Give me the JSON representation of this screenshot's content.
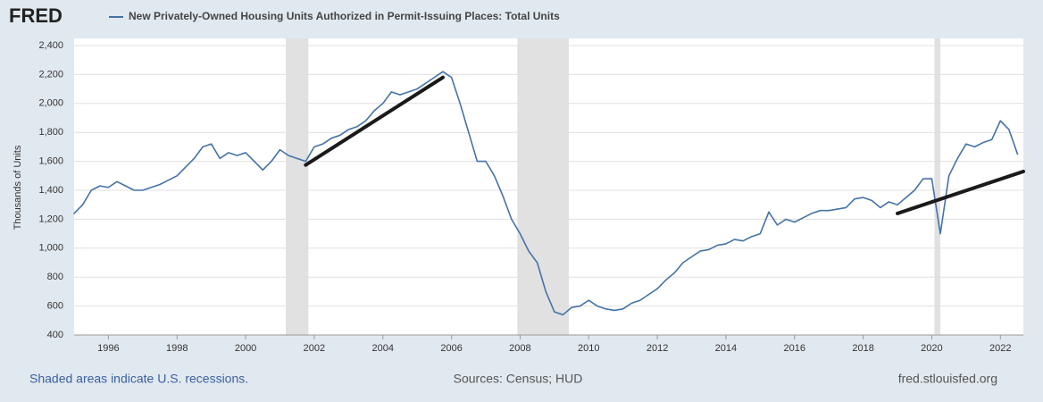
{
  "chart_data": {
    "type": "line",
    "logo": "FRED",
    "title": "New Privately-Owned Housing Units Authorized in Permit-Issuing Places: Total Units",
    "y_label": "Thousands of Units",
    "footer_left": "Shaded areas indicate U.S. recessions.",
    "footer_center": "Sources: Census; HUD",
    "footer_right": "fred.stlouisfed.org",
    "x": [
      1995,
      1995.25,
      1995.5,
      1995.75,
      1996,
      1996.25,
      1996.5,
      1996.75,
      1997,
      1997.25,
      1997.5,
      1997.75,
      1998,
      1998.25,
      1998.5,
      1998.75,
      1999,
      1999.25,
      1999.5,
      1999.75,
      2000,
      2000.25,
      2000.5,
      2000.75,
      2001,
      2001.25,
      2001.5,
      2001.75,
      2002,
      2002.25,
      2002.5,
      2002.75,
      2003,
      2003.25,
      2003.5,
      2003.75,
      2004,
      2004.25,
      2004.5,
      2004.75,
      2005,
      2005.25,
      2005.5,
      2005.75,
      2006,
      2006.25,
      2006.5,
      2006.75,
      2007,
      2007.25,
      2007.5,
      2007.75,
      2008,
      2008.25,
      2008.5,
      2008.75,
      2009,
      2009.25,
      2009.5,
      2009.75,
      2010,
      2010.25,
      2010.5,
      2010.75,
      2011,
      2011.25,
      2011.5,
      2011.75,
      2012,
      2012.25,
      2012.5,
      2012.75,
      2013,
      2013.25,
      2013.5,
      2013.75,
      2014,
      2014.25,
      2014.5,
      2014.75,
      2015,
      2015.25,
      2015.5,
      2015.75,
      2016,
      2016.25,
      2016.5,
      2016.75,
      2017,
      2017.25,
      2017.5,
      2017.75,
      2018,
      2018.25,
      2018.5,
      2018.75,
      2019,
      2019.25,
      2019.5,
      2019.75,
      2020,
      2020.25,
      2020.5,
      2020.75,
      2021,
      2021.25,
      2021.5,
      2021.75,
      2022,
      2022.25,
      2022.5
    ],
    "series": [
      {
        "color": "#4572a7",
        "values": [
          1240,
          1300,
          1400,
          1430,
          1420,
          1460,
          1430,
          1400,
          1400,
          1420,
          1440,
          1470,
          1500,
          1560,
          1620,
          1700,
          1720,
          1620,
          1660,
          1640,
          1660,
          1600,
          1540,
          1600,
          1680,
          1640,
          1620,
          1600,
          1700,
          1720,
          1760,
          1780,
          1820,
          1840,
          1880,
          1950,
          2000,
          2080,
          2060,
          2080,
          2100,
          2140,
          2180,
          2220,
          2180,
          2000,
          1800,
          1600,
          1600,
          1500,
          1360,
          1200,
          1100,
          980,
          900,
          700,
          560,
          540,
          590,
          600,
          640,
          600,
          580,
          570,
          580,
          620,
          640,
          680,
          720,
          780,
          830,
          900,
          940,
          980,
          990,
          1020,
          1030,
          1060,
          1050,
          1080,
          1100,
          1250,
          1160,
          1200,
          1180,
          1210,
          1240,
          1260,
          1260,
          1270,
          1280,
          1340,
          1350,
          1330,
          1280,
          1320,
          1300,
          1350,
          1400,
          1480,
          1480,
          1100,
          1500,
          1620,
          1720,
          1700,
          1730,
          1750,
          1880,
          1820,
          1650
        ]
      }
    ],
    "trend_lines": [
      {
        "color": "#1a1a1a",
        "x": [
          2001.75,
          2005.75
        ],
        "values": [
          1575,
          2180
        ]
      },
      {
        "color": "#1a1a1a",
        "x": [
          2019.0,
          2022.67
        ],
        "values": [
          1240,
          1530
        ]
      }
    ],
    "recessions": [
      [
        2001.17,
        2001.83
      ],
      [
        2007.92,
        2009.42
      ],
      [
        2020.08,
        2020.25
      ]
    ],
    "recession_color": "#e1e1e1",
    "xlim": [
      1995,
      2022.67
    ],
    "ylim": [
      400,
      2400
    ],
    "xticks": [
      1996,
      1998,
      2000,
      2002,
      2004,
      2006,
      2008,
      2010,
      2012,
      2014,
      2016,
      2018,
      2020,
      2022
    ],
    "yticks": [
      400,
      600,
      800,
      {
        "value": 1000,
        "label": "1,000"
      },
      {
        "value": 1200,
        "label": "1,200"
      },
      {
        "value": 1400,
        "label": "1,400"
      },
      {
        "value": 1600,
        "label": "1,600"
      },
      {
        "value": 1800,
        "label": "1,800"
      },
      {
        "value": 2000,
        "label": "2,000"
      },
      {
        "value": 2200,
        "label": "2,200"
      },
      {
        "value": 2400,
        "label": "2,400"
      }
    ],
    "grid": true
  }
}
